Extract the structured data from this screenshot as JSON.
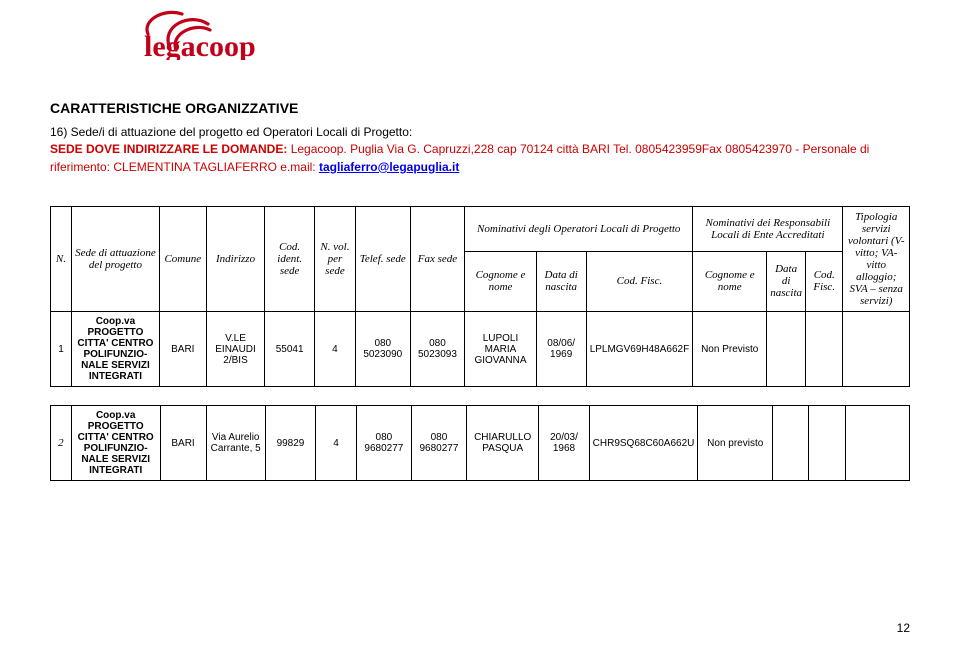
{
  "logo": {
    "brand": "legacoop",
    "color": "#c20018"
  },
  "heading": "CARATTERISTICHE ORGANIZZATIVE",
  "intro": {
    "line1_prefix": "16) Sede/i di attuazione del progetto ed Operatori Locali di Progetto:",
    "line2_label": "SEDE DOVE INDIRIZZARE LE DOMANDE:",
    "line2_rest": " Legacoop.  Puglia  Via G. Capruzzi,228 cap 70124 città BARI  Tel. 0805423959Fax 0805423970 - Personale di riferimento: CLEMENTINA TAGLIAFERRO   e.mail: ",
    "email": "tagliaferro@legapuglia.it"
  },
  "table1": {
    "headers": {
      "n": "N.",
      "sede_att": "Sede di attuazione del progetto",
      "comune": "Comune",
      "indirizzo": "Indirizzo",
      "cod_ident": "Cod. ident. sede",
      "n_vol": "N. vol. per sede",
      "telef": "Telef. sede",
      "fax": "Fax sede",
      "nom_op": "Nominativi degli Operatori Locali di Progetto",
      "cognome": "Cognome e nome",
      "data_nasc": "Data di nascita",
      "cod_fisc": "Cod. Fisc.",
      "nom_resp": "Nominativi dei Responsabili Locali di Ente Accreditati",
      "cognome2": "Cognome e nome",
      "data_nasc2": "Data di nascita",
      "cod_fisc2": "Cod. Fisc.",
      "tipologia": "Tipologia servizi volontari (V- vitto; VA-vitto alloggio; SVA – senza servizi)"
    },
    "row": {
      "n": "1",
      "sede_att": "Coop.va PROGETTO CITTA' CENTRO POLIFUNZIO-NALE SERVIZI INTEGRATI",
      "comune": "BARI",
      "indirizzo": "V.LE EINAUDI 2/BIS",
      "cod_ident": "55041",
      "n_vol": "4",
      "telef": "080 5023090",
      "fax": "080 5023093",
      "cognome": "LUPOLI MARIA GIOVANNA",
      "data_nasc": "08/06/ 1969",
      "cod_fisc": "LPLMGV69H48A662F",
      "cognome2": "Non Previsto",
      "data_nasc2": "",
      "cod_fisc2": "",
      "tipologia": ""
    }
  },
  "table2": {
    "row": {
      "n": "2",
      "sede_att": "Coop.va PROGETTO CITTA' CENTRO POLIFUNZIO-NALE SERVIZI INTEGRATI",
      "comune": "BARI",
      "indirizzo": "Via Aurelio Carrante, 5",
      "cod_ident": "99829",
      "n_vol": "4",
      "telef": "080 9680277",
      "fax": "080 9680277",
      "cognome": "CHIARULLO PASQUA",
      "data_nasc": "20/03/ 1968",
      "cod_fisc": "CHR9SQ68C60A662U",
      "cognome2": "Non previsto",
      "data_nasc2": "",
      "cod_fisc2": "",
      "tipologia": ""
    }
  },
  "pagenum": "12",
  "layout": {
    "col_widths_pct": [
      2.5,
      10.5,
      5.5,
      7,
      6,
      5,
      6.5,
      6.5,
      8.5,
      6,
      10,
      9,
      4.5,
      4.5,
      8
    ]
  }
}
